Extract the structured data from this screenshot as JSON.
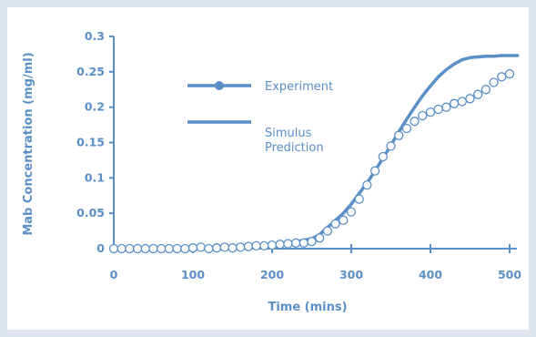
{
  "chart_data": {
    "type": "line",
    "title": "",
    "xlabel": "Time (mins)",
    "ylabel": "Mab Concentration  (mg/ml)",
    "xlim": [
      0,
      510
    ],
    "ylim": [
      0,
      0.3
    ],
    "xticks": [
      0,
      100,
      200,
      300,
      400,
      500
    ],
    "xtick_labels": [
      "0",
      "100",
      "200",
      "300",
      "400",
      "500"
    ],
    "yticks": [
      0,
      0.05,
      0.1,
      0.15,
      0.2,
      0.25,
      0.3
    ],
    "ytick_labels": [
      "0",
      "0.05",
      "0.1",
      "0.15",
      "0.2",
      "0.25",
      "0.3"
    ],
    "grid": false,
    "legend_position": "top-center",
    "colors": {
      "line": "#5b8fc7",
      "background": "#dfe5ef",
      "panel": "#ffffff"
    },
    "series": [
      {
        "name": "Experiment",
        "style": "open-circle markers",
        "x": [
          0,
          10,
          20,
          30,
          40,
          50,
          60,
          70,
          80,
          90,
          100,
          110,
          120,
          130,
          140,
          150,
          160,
          170,
          180,
          190,
          200,
          210,
          220,
          230,
          240,
          250,
          260,
          270,
          280,
          290,
          300,
          310,
          320,
          330,
          340,
          350,
          360,
          370,
          380,
          390,
          400,
          410,
          420,
          430,
          440,
          450,
          460,
          470,
          480,
          490,
          500
        ],
        "y": [
          0,
          0,
          0,
          0,
          0,
          0,
          0,
          0,
          0,
          0,
          0.001,
          0.002,
          0,
          0.001,
          0.002,
          0.001,
          0.002,
          0.003,
          0.004,
          0.004,
          0.005,
          0.006,
          0.007,
          0.008,
          0.008,
          0.01,
          0.015,
          0.025,
          0.035,
          0.04,
          0.052,
          0.07,
          0.09,
          0.11,
          0.13,
          0.145,
          0.16,
          0.17,
          0.18,
          0.188,
          0.193,
          0.197,
          0.2,
          0.205,
          0.208,
          0.212,
          0.218,
          0.225,
          0.235,
          0.243,
          0.247
        ]
      },
      {
        "name": "Simulus\nPrediction",
        "style": "solid line",
        "x": [
          0,
          50,
          100,
          150,
          200,
          220,
          240,
          250,
          260,
          270,
          280,
          290,
          300,
          310,
          320,
          330,
          340,
          350,
          360,
          370,
          380,
          390,
          400,
          410,
          420,
          430,
          440,
          450,
          460,
          470,
          480,
          490,
          500,
          510
        ],
        "y": [
          0,
          0,
          0,
          0,
          0.005,
          0.008,
          0.012,
          0.014,
          0.02,
          0.03,
          0.04,
          0.05,
          0.063,
          0.078,
          0.093,
          0.11,
          0.128,
          0.146,
          0.165,
          0.183,
          0.2,
          0.216,
          0.23,
          0.243,
          0.253,
          0.261,
          0.267,
          0.27,
          0.271,
          0.272,
          0.272,
          0.273,
          0.273,
          0.273
        ]
      }
    ],
    "legend": [
      {
        "label": "Experiment",
        "marker": "filled-circle-line"
      },
      {
        "label": "Simulus\nPrediction",
        "marker": "line"
      }
    ]
  }
}
